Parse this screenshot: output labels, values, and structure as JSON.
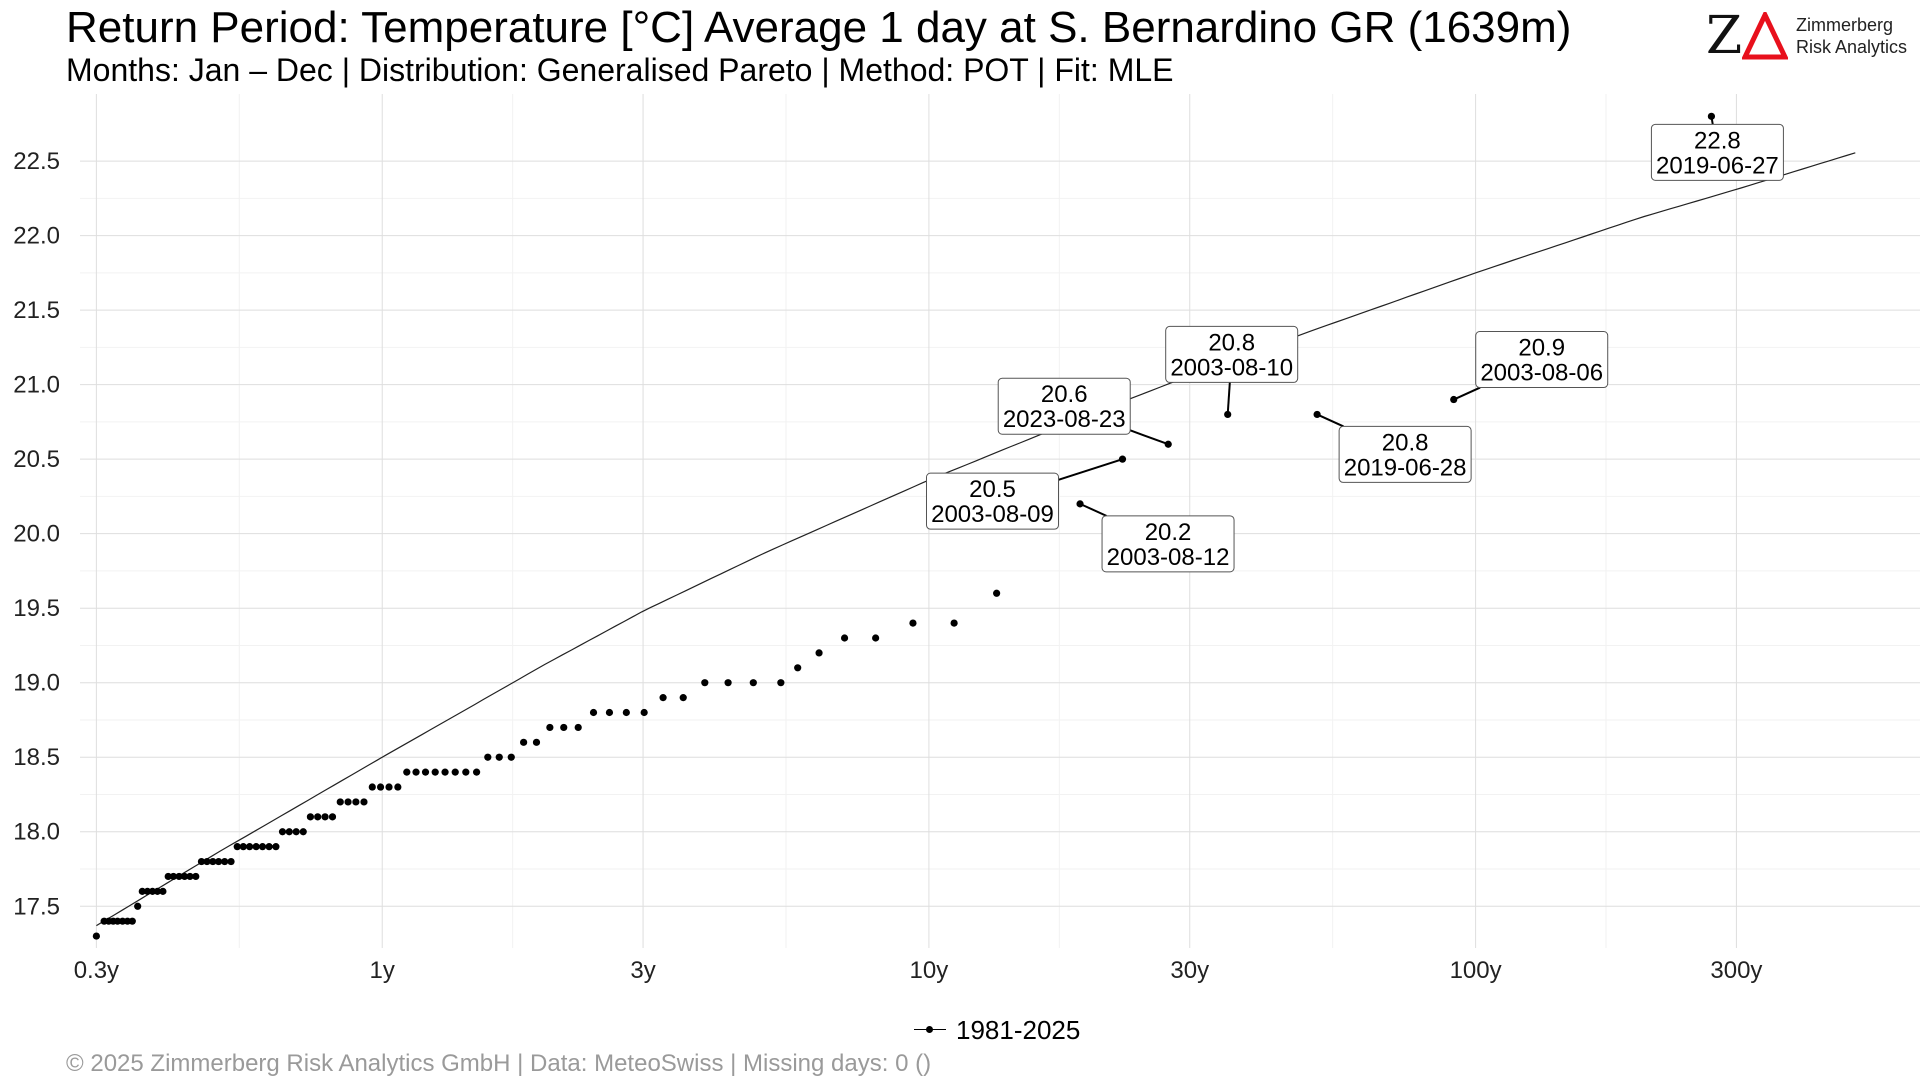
{
  "header": {
    "title": "Return Period: Temperature [°C] Average 1 day at S. Bernardino  GR (1639m)",
    "subtitle": "Months: Jan – Dec | Distribution: Generalised Pareto | Method: POT | Fit: MLE"
  },
  "logo": {
    "mark": "Z",
    "line1": "Zimmerberg",
    "line2": "Risk Analytics",
    "accent_color": "#e8101c"
  },
  "footer": {
    "text": "©  2025 Zimmerberg Risk Analytics GmbH | Data: MeteoSwiss | Missing days: 0 ()"
  },
  "chart_data": {
    "type": "scatter",
    "title": "Return Period: Temperature [°C] Average 1 day at S. Bernardino  GR (1639m)",
    "subtitle": "Months: Jan – Dec | Distribution: Generalised Pareto | Method: POT | Fit: MLE",
    "x_scale": "log",
    "xlim": [
      0.28,
      650
    ],
    "ylim": [
      17.22,
      22.95
    ],
    "x_ticks": [
      0.3,
      1,
      3,
      10,
      30,
      100,
      300
    ],
    "x_tick_labels": [
      "0.3y",
      "1y",
      "3y",
      "10y",
      "30y",
      "100y",
      "300y"
    ],
    "y_ticks": [
      17.5,
      18.0,
      18.5,
      19.0,
      19.5,
      20.0,
      20.5,
      21.0,
      21.5,
      22.0,
      22.5
    ],
    "y_tick_labels": [
      "17.5",
      "18.0",
      "18.5",
      "19.0",
      "19.5",
      "20.0",
      "20.5",
      "21.0",
      "21.5",
      "22.0",
      "22.5"
    ],
    "grid": true,
    "legend_position": "bottom",
    "series": [
      {
        "name": "1981-2025",
        "color": "#000000",
        "points": [
          [
            0.3,
            17.3
          ],
          [
            0.31,
            17.4
          ],
          [
            0.316,
            17.4
          ],
          [
            0.322,
            17.4
          ],
          [
            0.328,
            17.4
          ],
          [
            0.335,
            17.4
          ],
          [
            0.342,
            17.4
          ],
          [
            0.349,
            17.4
          ],
          [
            0.357,
            17.5
          ],
          [
            0.364,
            17.6
          ],
          [
            0.372,
            17.6
          ],
          [
            0.38,
            17.6
          ],
          [
            0.388,
            17.6
          ],
          [
            0.397,
            17.6
          ],
          [
            0.406,
            17.7
          ],
          [
            0.415,
            17.7
          ],
          [
            0.425,
            17.7
          ],
          [
            0.435,
            17.7
          ],
          [
            0.445,
            17.7
          ],
          [
            0.456,
            17.7
          ],
          [
            0.467,
            17.8
          ],
          [
            0.478,
            17.8
          ],
          [
            0.49,
            17.8
          ],
          [
            0.502,
            17.8
          ],
          [
            0.515,
            17.8
          ],
          [
            0.529,
            17.8
          ],
          [
            0.543,
            17.9
          ],
          [
            0.557,
            17.9
          ],
          [
            0.572,
            17.9
          ],
          [
            0.588,
            17.9
          ],
          [
            0.604,
            17.9
          ],
          [
            0.621,
            17.9
          ],
          [
            0.639,
            17.9
          ],
          [
            0.657,
            18.0
          ],
          [
            0.676,
            18.0
          ],
          [
            0.696,
            18.0
          ],
          [
            0.717,
            18.0
          ],
          [
            0.739,
            18.1
          ],
          [
            0.762,
            18.1
          ],
          [
            0.786,
            18.1
          ],
          [
            0.811,
            18.1
          ],
          [
            0.838,
            18.2
          ],
          [
            0.866,
            18.2
          ],
          [
            0.895,
            18.2
          ],
          [
            0.926,
            18.2
          ],
          [
            0.959,
            18.3
          ],
          [
            0.993,
            18.3
          ],
          [
            1.029,
            18.3
          ],
          [
            1.068,
            18.3
          ],
          [
            1.109,
            18.4
          ],
          [
            1.153,
            18.4
          ],
          [
            1.2,
            18.4
          ],
          [
            1.25,
            18.4
          ],
          [
            1.303,
            18.4
          ],
          [
            1.36,
            18.4
          ],
          [
            1.422,
            18.4
          ],
          [
            1.488,
            18.4
          ],
          [
            1.56,
            18.5
          ],
          [
            1.637,
            18.5
          ],
          [
            1.722,
            18.5
          ],
          [
            1.814,
            18.6
          ],
          [
            1.915,
            18.6
          ],
          [
            2.026,
            18.7
          ],
          [
            2.148,
            18.7
          ],
          [
            2.283,
            18.7
          ],
          [
            2.435,
            18.8
          ],
          [
            2.604,
            18.8
          ],
          [
            2.796,
            18.8
          ],
          [
            3.014,
            18.8
          ],
          [
            3.264,
            18.9
          ],
          [
            3.553,
            18.9
          ],
          [
            3.891,
            19.0
          ],
          [
            4.292,
            19.0
          ],
          [
            4.773,
            19.0
          ],
          [
            5.36,
            19.0
          ],
          [
            5.754,
            19.1
          ],
          [
            6.296,
            19.2
          ],
          [
            7.01,
            19.3
          ],
          [
            7.99,
            19.3
          ],
          [
            9.35,
            19.4
          ],
          [
            11.12,
            19.4
          ],
          [
            13.3,
            19.6
          ],
          [
            18.9,
            20.2
          ],
          [
            22.6,
            20.5
          ],
          [
            27.4,
            20.6
          ],
          [
            35.2,
            20.8
          ],
          [
            51.3,
            20.8
          ],
          [
            91.2,
            20.9
          ],
          [
            270.0,
            22.8
          ]
        ]
      }
    ],
    "fit_curve": {
      "name": "Generalised Pareto fit",
      "x": [
        0.3,
        0.5,
        1,
        2,
        3,
        5,
        10,
        20,
        30,
        50,
        100,
        200,
        300,
        600
      ],
      "y": [
        17.37,
        17.86,
        18.5,
        19.13,
        19.48,
        19.87,
        20.36,
        20.81,
        21.06,
        21.36,
        21.75,
        22.12,
        22.31,
        22.65
      ]
    },
    "annotations": [
      {
        "value": "22.8",
        "date": "2019-06-27",
        "x": 270.0,
        "y": 22.8
      },
      {
        "value": "20.9",
        "date": "2003-08-06",
        "x": 91.2,
        "y": 20.9
      },
      {
        "value": "20.8",
        "date": "2003-08-10",
        "x": 35.2,
        "y": 20.8
      },
      {
        "value": "20.8",
        "date": "2019-06-28",
        "x": 51.3,
        "y": 20.8
      },
      {
        "value": "20.6",
        "date": "2023-08-23",
        "x": 27.4,
        "y": 20.6
      },
      {
        "value": "20.5",
        "date": "2003-08-09",
        "x": 22.6,
        "y": 20.5
      },
      {
        "value": "20.2",
        "date": "2003-08-12",
        "x": 18.9,
        "y": 20.2
      }
    ]
  }
}
